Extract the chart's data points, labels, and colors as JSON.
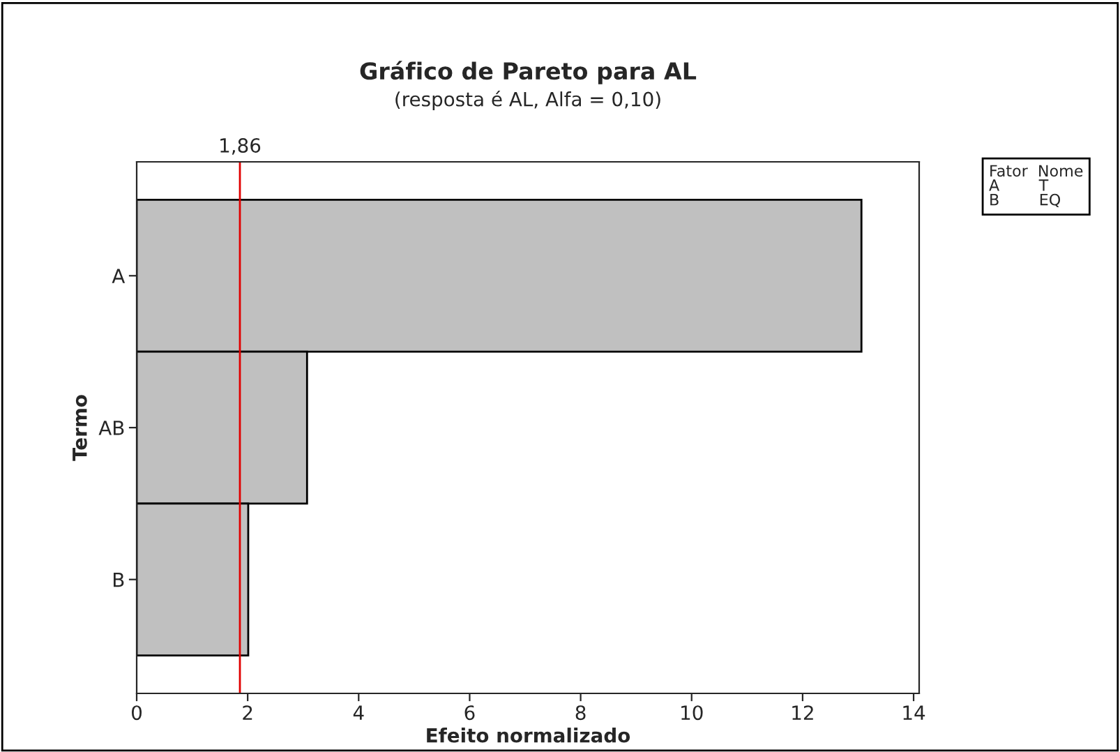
{
  "chart_data": {
    "type": "bar",
    "orientation": "horizontal",
    "title": "Gráfico de Pareto para AL",
    "subtitle": "(resposta é AL, Alfa = 0,10)",
    "xlabel": "Efeito normalizado",
    "ylabel": "Termo",
    "categories": [
      "A",
      "AB",
      "B"
    ],
    "series": [
      {
        "color": "#c0c0c0",
        "values": [
          13.06,
          3.07,
          2.01
        ]
      }
    ],
    "xlim": [
      0,
      14.1
    ],
    "xticks": [
      0,
      2,
      4,
      6,
      8,
      10,
      12,
      14
    ],
    "ref_lines": [
      {
        "axis": "x",
        "value": 1.86,
        "label": "1,86",
        "color": "#e00000"
      }
    ],
    "annotations": [
      "Fator  Nome\nA        T\nB        EQ"
    ],
    "grid": false,
    "legend": false
  }
}
